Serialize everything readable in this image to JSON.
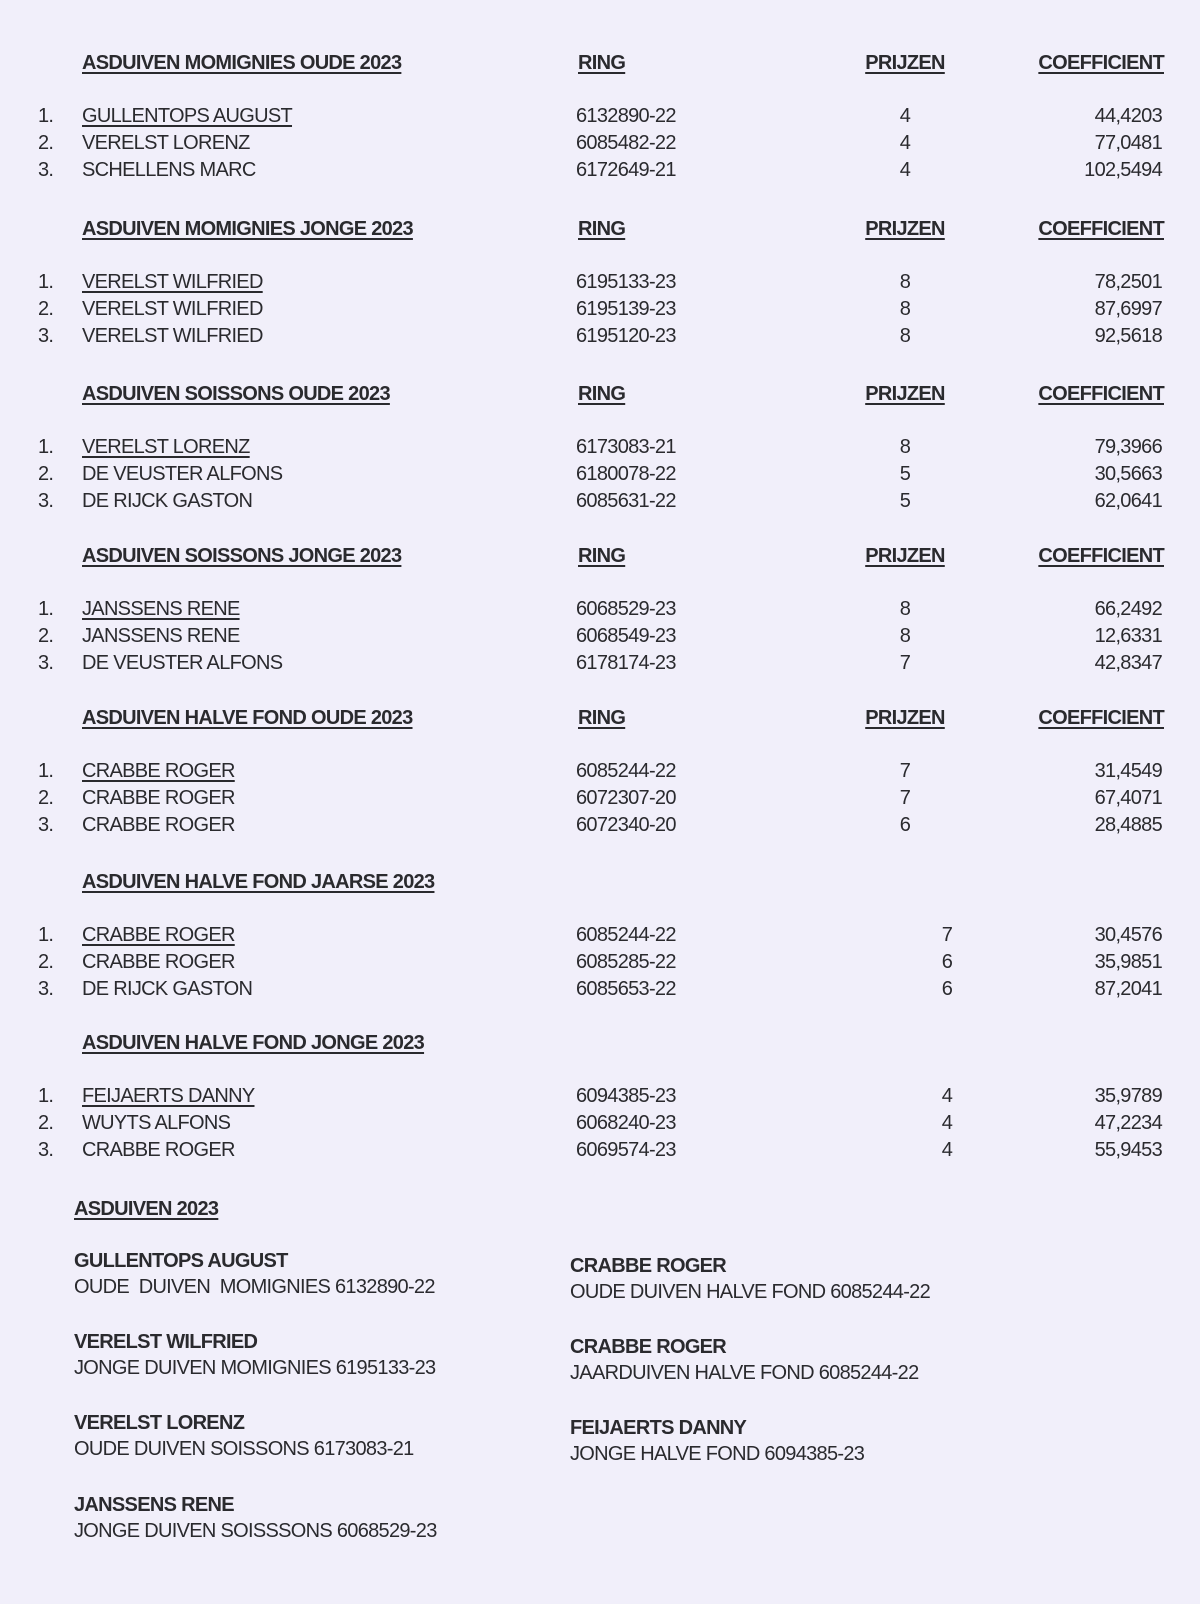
{
  "columns": {
    "ring": "RING",
    "prijzen": "PRIJZEN",
    "coefficient": "COEFFICIENT"
  },
  "sections": [
    {
      "title": "ASDUIVEN MOMIGNIES OUDE 2023",
      "show_columns": true,
      "rows": [
        {
          "rank": "1.",
          "name": "GULLENTOPS AUGUST",
          "ring": "6132890-22",
          "prijzen": "4",
          "coefficient": "44,4203"
        },
        {
          "rank": "2.",
          "name": "VERELST LORENZ",
          "ring": "6085482-22",
          "prijzen": "4",
          "coefficient": "77,0481"
        },
        {
          "rank": "3.",
          "name": "SCHELLENS MARC",
          "ring": "6172649-21",
          "prijzen": "4",
          "coefficient": "102,5494"
        }
      ]
    },
    {
      "title": "ASDUIVEN MOMIGNIES JONGE 2023",
      "show_columns": true,
      "rows": [
        {
          "rank": "1.",
          "name": "VERELST WILFRIED",
          "ring": "6195133-23",
          "prijzen": "8",
          "coefficient": "78,2501"
        },
        {
          "rank": "2.",
          "name": "VERELST WILFRIED",
          "ring": "6195139-23",
          "prijzen": "8",
          "coefficient": "87,6997"
        },
        {
          "rank": "3.",
          "name": "VERELST WILFRIED",
          "ring": "6195120-23",
          "prijzen": "8",
          "coefficient": "92,5618"
        }
      ]
    },
    {
      "title": "ASDUIVEN SOISSONS OUDE 2023",
      "show_columns": true,
      "rows": [
        {
          "rank": "1.",
          "name": "VERELST LORENZ",
          "ring": "6173083-21",
          "prijzen": "8",
          "coefficient": "79,3966"
        },
        {
          "rank": "2.",
          "name": "DE VEUSTER ALFONS",
          "ring": "6180078-22",
          "prijzen": "5",
          "coefficient": "30,5663"
        },
        {
          "rank": "3.",
          "name": "DE RIJCK GASTON",
          "ring": "6085631-22",
          "prijzen": "5",
          "coefficient": "62,0641"
        }
      ]
    },
    {
      "title": "ASDUIVEN SOISSONS JONGE 2023",
      "show_columns": true,
      "rows": [
        {
          "rank": "1.",
          "name": "JANSSENS RENE",
          "ring": "6068529-23",
          "prijzen": "8",
          "coefficient": "66,2492"
        },
        {
          "rank": "2.",
          "name": "JANSSENS RENE",
          "ring": "6068549-23",
          "prijzen": "8",
          "coefficient": "12,6331"
        },
        {
          "rank": "3.",
          "name": "DE VEUSTER ALFONS",
          "ring": "6178174-23",
          "prijzen": "7",
          "coefficient": "42,8347"
        }
      ]
    },
    {
      "title": "ASDUIVEN HALVE FOND OUDE 2023",
      "show_columns": true,
      "rows": [
        {
          "rank": "1.",
          "name": "CRABBE ROGER",
          "ring": "6085244-22",
          "prijzen": "7",
          "coefficient": "31,4549"
        },
        {
          "rank": "2.",
          "name": "CRABBE ROGER",
          "ring": "6072307-20",
          "prijzen": "7",
          "coefficient": "67,4071"
        },
        {
          "rank": "3.",
          "name": "CRABBE ROGER",
          "ring": "6072340-20",
          "prijzen": "6",
          "coefficient": "28,4885"
        }
      ]
    },
    {
      "title": "ASDUIVEN HALVE FOND JAARSE 2023",
      "show_columns": false,
      "rows": [
        {
          "rank": "1.",
          "name": "CRABBE ROGER",
          "ring": "6085244-22",
          "prijzen": "7",
          "coefficient": "30,4576"
        },
        {
          "rank": "2.",
          "name": "CRABBE ROGER",
          "ring": "6085285-22",
          "prijzen": "6",
          "coefficient": "35,9851"
        },
        {
          "rank": "3.",
          "name": "DE RIJCK GASTON",
          "ring": "6085653-22",
          "prijzen": "6",
          "coefficient": "87,2041"
        }
      ]
    },
    {
      "title": "ASDUIVEN HALVE FOND JONGE 2023",
      "show_columns": false,
      "rows": [
        {
          "rank": "1.",
          "name": "FEIJAERTS DANNY",
          "ring": "6094385-23",
          "prijzen": "4",
          "coefficient": "35,9789"
        },
        {
          "rank": "2.",
          "name": "WUYTS ALFONS",
          "ring": "6068240-23",
          "prijzen": "4",
          "coefficient": "47,2234"
        },
        {
          "rank": "3.",
          "name": "CRABBE ROGER",
          "ring": "6069574-23",
          "prijzen": "4",
          "coefficient": "55,9453"
        }
      ]
    }
  ],
  "summary": {
    "title": "ASDUIVEN 2023",
    "left": [
      {
        "name": "GULLENTOPS AUGUST",
        "detail": "OUDE  DUIVEN  MOMIGNIES 6132890-22"
      },
      {
        "name": "VERELST WILFRIED",
        "detail": "JONGE DUIVEN MOMIGNIES 6195133-23"
      },
      {
        "name": "VERELST LORENZ",
        "detail": "OUDE DUIVEN SOISSONS 6173083-21"
      },
      {
        "name": "JANSSENS RENE",
        "detail": "JONGE DUIVEN SOISSSONS 6068529-23"
      }
    ],
    "right": [
      {
        "name": "CRABBE ROGER",
        "detail": "OUDE DUIVEN HALVE FOND 6085244-22"
      },
      {
        "name": "CRABBE ROGER",
        "detail": "JAARDUIVEN HALVE FOND 6085244-22"
      },
      {
        "name": "FEIJAERTS DANNY",
        "detail": "JONGE HALVE FOND 6094385-23"
      }
    ]
  }
}
